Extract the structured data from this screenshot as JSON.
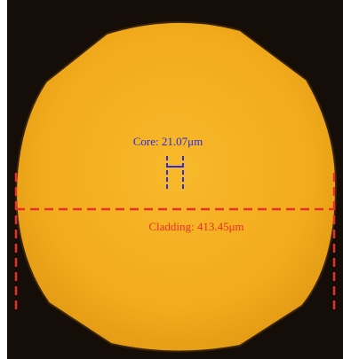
{
  "annotations": {
    "core": "Core: 21.07μm",
    "cladding": "Cladding: 413.45μm"
  }
}
